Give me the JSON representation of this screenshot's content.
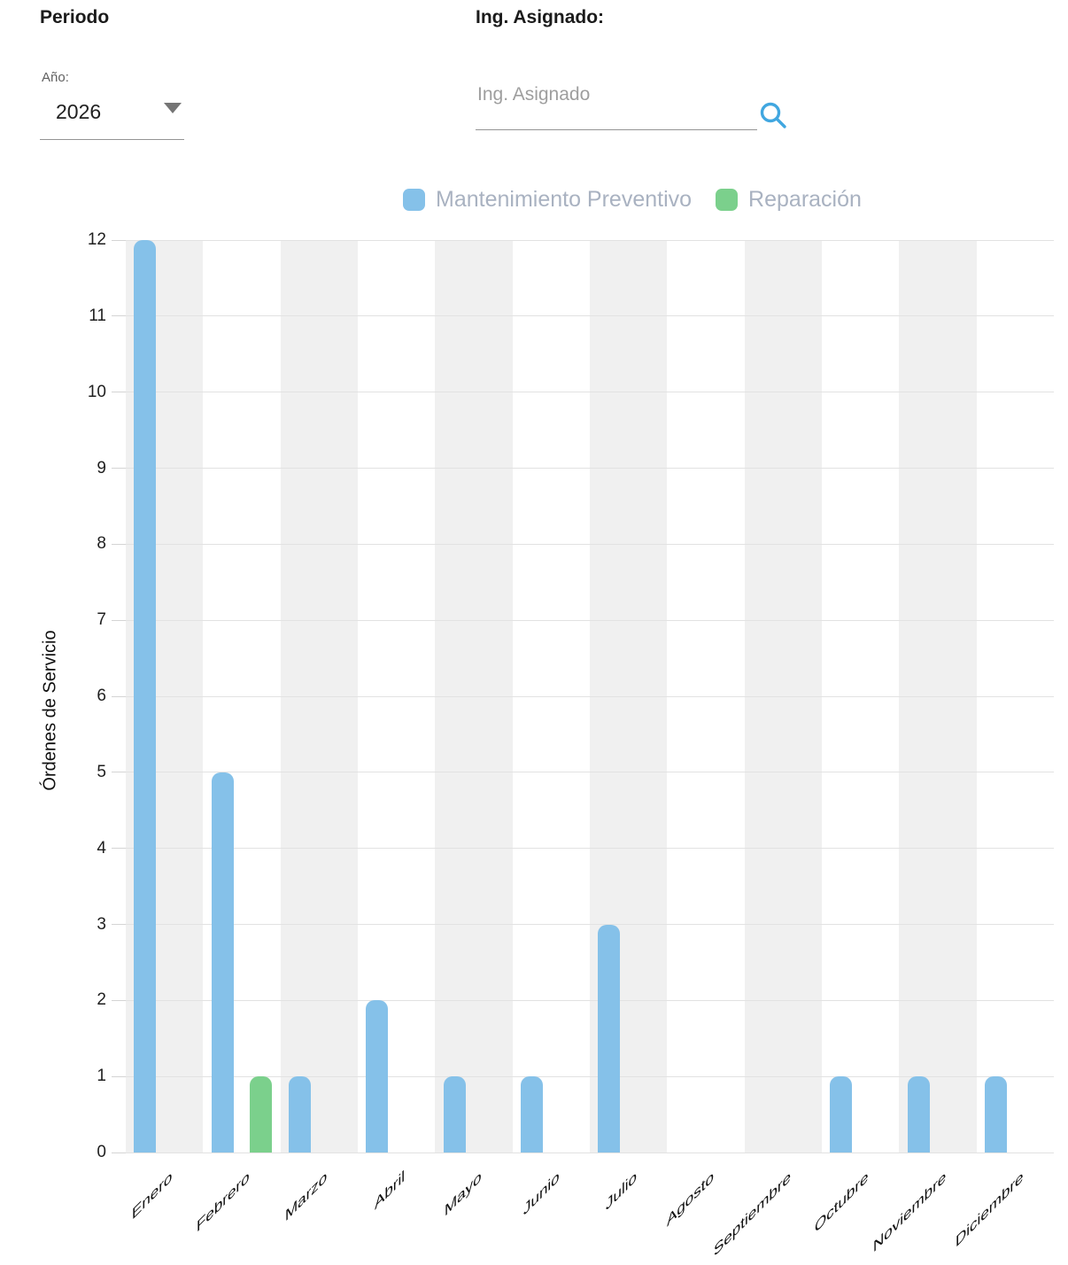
{
  "filters": {
    "periodo": {
      "title": "Periodo",
      "year_label": "Año:",
      "year_value": "2026"
    },
    "ing_asignado": {
      "title": "Ing. Asignado:",
      "placeholder": "Ing. Asignado",
      "search_icon_color": "#41a7e0"
    }
  },
  "chart_data": {
    "type": "bar",
    "categories": [
      "Enero",
      "Febrero",
      "Marzo",
      "Abril",
      "Mayo",
      "Junio",
      "Julio",
      "Agosto",
      "Septiembre",
      "Octubre",
      "Noviembre",
      "Diciembre"
    ],
    "series": [
      {
        "name": "Mantenimiento Preventivo",
        "color": "#85c1e9",
        "values": [
          12,
          5,
          1,
          2,
          1,
          1,
          3,
          0,
          0,
          1,
          1,
          1
        ]
      },
      {
        "name": "Reparación",
        "color": "#7bd08c",
        "values": [
          0,
          1,
          0,
          0,
          0,
          0,
          0,
          0,
          0,
          0,
          0,
          0
        ]
      }
    ],
    "ylabel": "Órdenes de Servicio",
    "xlabel": "",
    "ylim": [
      0,
      12
    ],
    "yticks": [
      0,
      1,
      2,
      3,
      4,
      5,
      6,
      7,
      8,
      9,
      10,
      11,
      12
    ],
    "legend_position": "top",
    "legend_text_color": "#a9b2c1",
    "grid": "horizontal",
    "background_band_color": "#f0f0f0",
    "background_bands_on": "alternate-columns-starting-Enero"
  }
}
